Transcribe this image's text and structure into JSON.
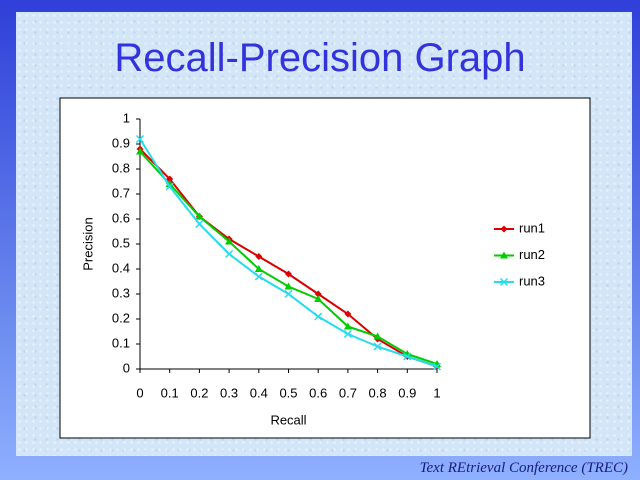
{
  "chart_data": {
    "type": "line",
    "title": "Recall-Precision Graph",
    "x_label": "Recall",
    "y_label": "Precision",
    "x": [
      0,
      0.1,
      0.2,
      0.3,
      0.4,
      0.5,
      0.6,
      0.7,
      0.8,
      0.9,
      1
    ],
    "series": [
      {
        "name": "run1",
        "color": "#dd0000",
        "marker": "diamond",
        "values": [
          0.88,
          0.76,
          0.61,
          0.52,
          0.45,
          0.38,
          0.3,
          0.22,
          0.12,
          0.05,
          0.01
        ]
      },
      {
        "name": "run2",
        "color": "#00cc00",
        "marker": "triangle",
        "values": [
          0.87,
          0.74,
          0.61,
          0.51,
          0.4,
          0.33,
          0.28,
          0.17,
          0.13,
          0.06,
          0.02
        ]
      },
      {
        "name": "run3",
        "color": "#22ddee",
        "marker": "x",
        "values": [
          0.92,
          0.73,
          0.58,
          0.46,
          0.37,
          0.3,
          0.21,
          0.14,
          0.09,
          0.05,
          0.01
        ]
      }
    ],
    "xlim": [
      0,
      1
    ],
    "xticks": [
      0,
      0.1,
      0.2,
      0.3,
      0.4,
      0.5,
      0.6,
      0.7,
      0.8,
      0.9,
      1
    ],
    "ylim": [
      0,
      1
    ],
    "yticks": [
      0,
      0.1,
      0.2,
      0.3,
      0.4,
      0.5,
      0.6,
      0.7,
      0.8,
      0.9,
      1
    ],
    "grid": false,
    "legend": "right"
  },
  "footer": "Text REtrieval Conference (TREC)"
}
